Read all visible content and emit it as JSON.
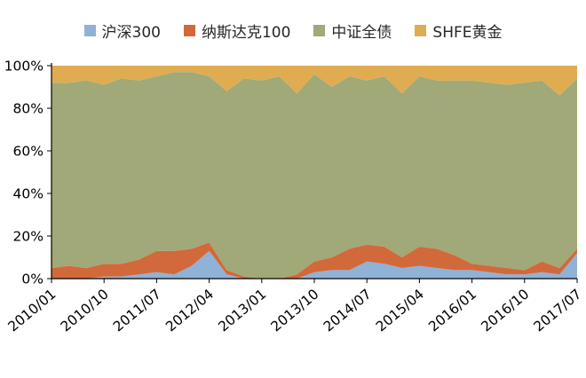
{
  "legend": [
    {
      "label": "沪深300",
      "color": "#8FB2D6"
    },
    {
      "label": "纳斯达克100",
      "color": "#D2693B"
    },
    {
      "label": "中证全债",
      "color": "#A0A977"
    },
    {
      "label": "SHFE黄金",
      "color": "#DFAC52"
    }
  ],
  "chart_data": {
    "type": "area",
    "stacked": true,
    "percent": true,
    "title": "",
    "xlabel": "",
    "ylabel": "",
    "ylim": [
      0,
      100
    ],
    "grid": false,
    "legend_position": "top",
    "y_ticks": [
      "0%",
      "20%",
      "40%",
      "60%",
      "80%",
      "100%"
    ],
    "x": [
      "2010/01",
      "2010/04",
      "2010/07",
      "2010/10",
      "2011/01",
      "2011/04",
      "2011/07",
      "2011/10",
      "2012/01",
      "2012/04",
      "2012/07",
      "2012/10",
      "2013/01",
      "2013/04",
      "2013/07",
      "2013/10",
      "2014/01",
      "2014/04",
      "2014/07",
      "2014/10",
      "2015/01",
      "2015/04",
      "2015/07",
      "2015/10",
      "2016/01",
      "2016/04",
      "2016/07",
      "2016/10",
      "2017/01",
      "2017/04",
      "2017/07"
    ],
    "x_tick_indices": [
      0,
      3,
      6,
      9,
      12,
      15,
      18,
      21,
      24,
      27,
      30
    ],
    "x_tick_labels": [
      "2010/01",
      "2010/10",
      "2011/07",
      "2012/04",
      "2013/01",
      "2013/10",
      "2014/07",
      "2015/04",
      "2016/01",
      "2016/10",
      "2017/07"
    ],
    "series": [
      {
        "name": "沪深300",
        "color": "#8FB2D6",
        "values": [
          0,
          0,
          0,
          1,
          1,
          2,
          3,
          2,
          6,
          13,
          2,
          0,
          0,
          0,
          0,
          3,
          4,
          4,
          8,
          7,
          5,
          6,
          5,
          4,
          4,
          3,
          2,
          2,
          3,
          2,
          12
        ]
      },
      {
        "name": "纳斯达克100",
        "color": "#D2693B",
        "values": [
          5,
          6,
          5,
          6,
          6,
          7,
          10,
          11,
          8,
          4,
          2,
          1,
          0,
          0,
          2,
          5,
          6,
          10,
          8,
          8,
          5,
          9,
          9,
          7,
          3,
          3,
          3,
          2,
          5,
          3,
          2
        ]
      },
      {
        "name": "中证全债",
        "color": "#A0A977",
        "values": [
          87,
          86,
          88,
          84,
          87,
          84,
          82,
          84,
          83,
          78,
          84,
          93,
          93,
          95,
          85,
          88,
          80,
          81,
          77,
          80,
          77,
          80,
          79,
          82,
          86,
          86,
          86,
          88,
          85,
          81,
          80
        ]
      },
      {
        "name": "SHFE黄金",
        "color": "#DFAC52",
        "values": [
          8,
          8,
          7,
          9,
          6,
          7,
          5,
          3,
          3,
          5,
          12,
          6,
          7,
          5,
          13,
          4,
          10,
          5,
          7,
          5,
          13,
          5,
          7,
          7,
          7,
          8,
          9,
          8,
          7,
          14,
          6
        ]
      }
    ]
  }
}
